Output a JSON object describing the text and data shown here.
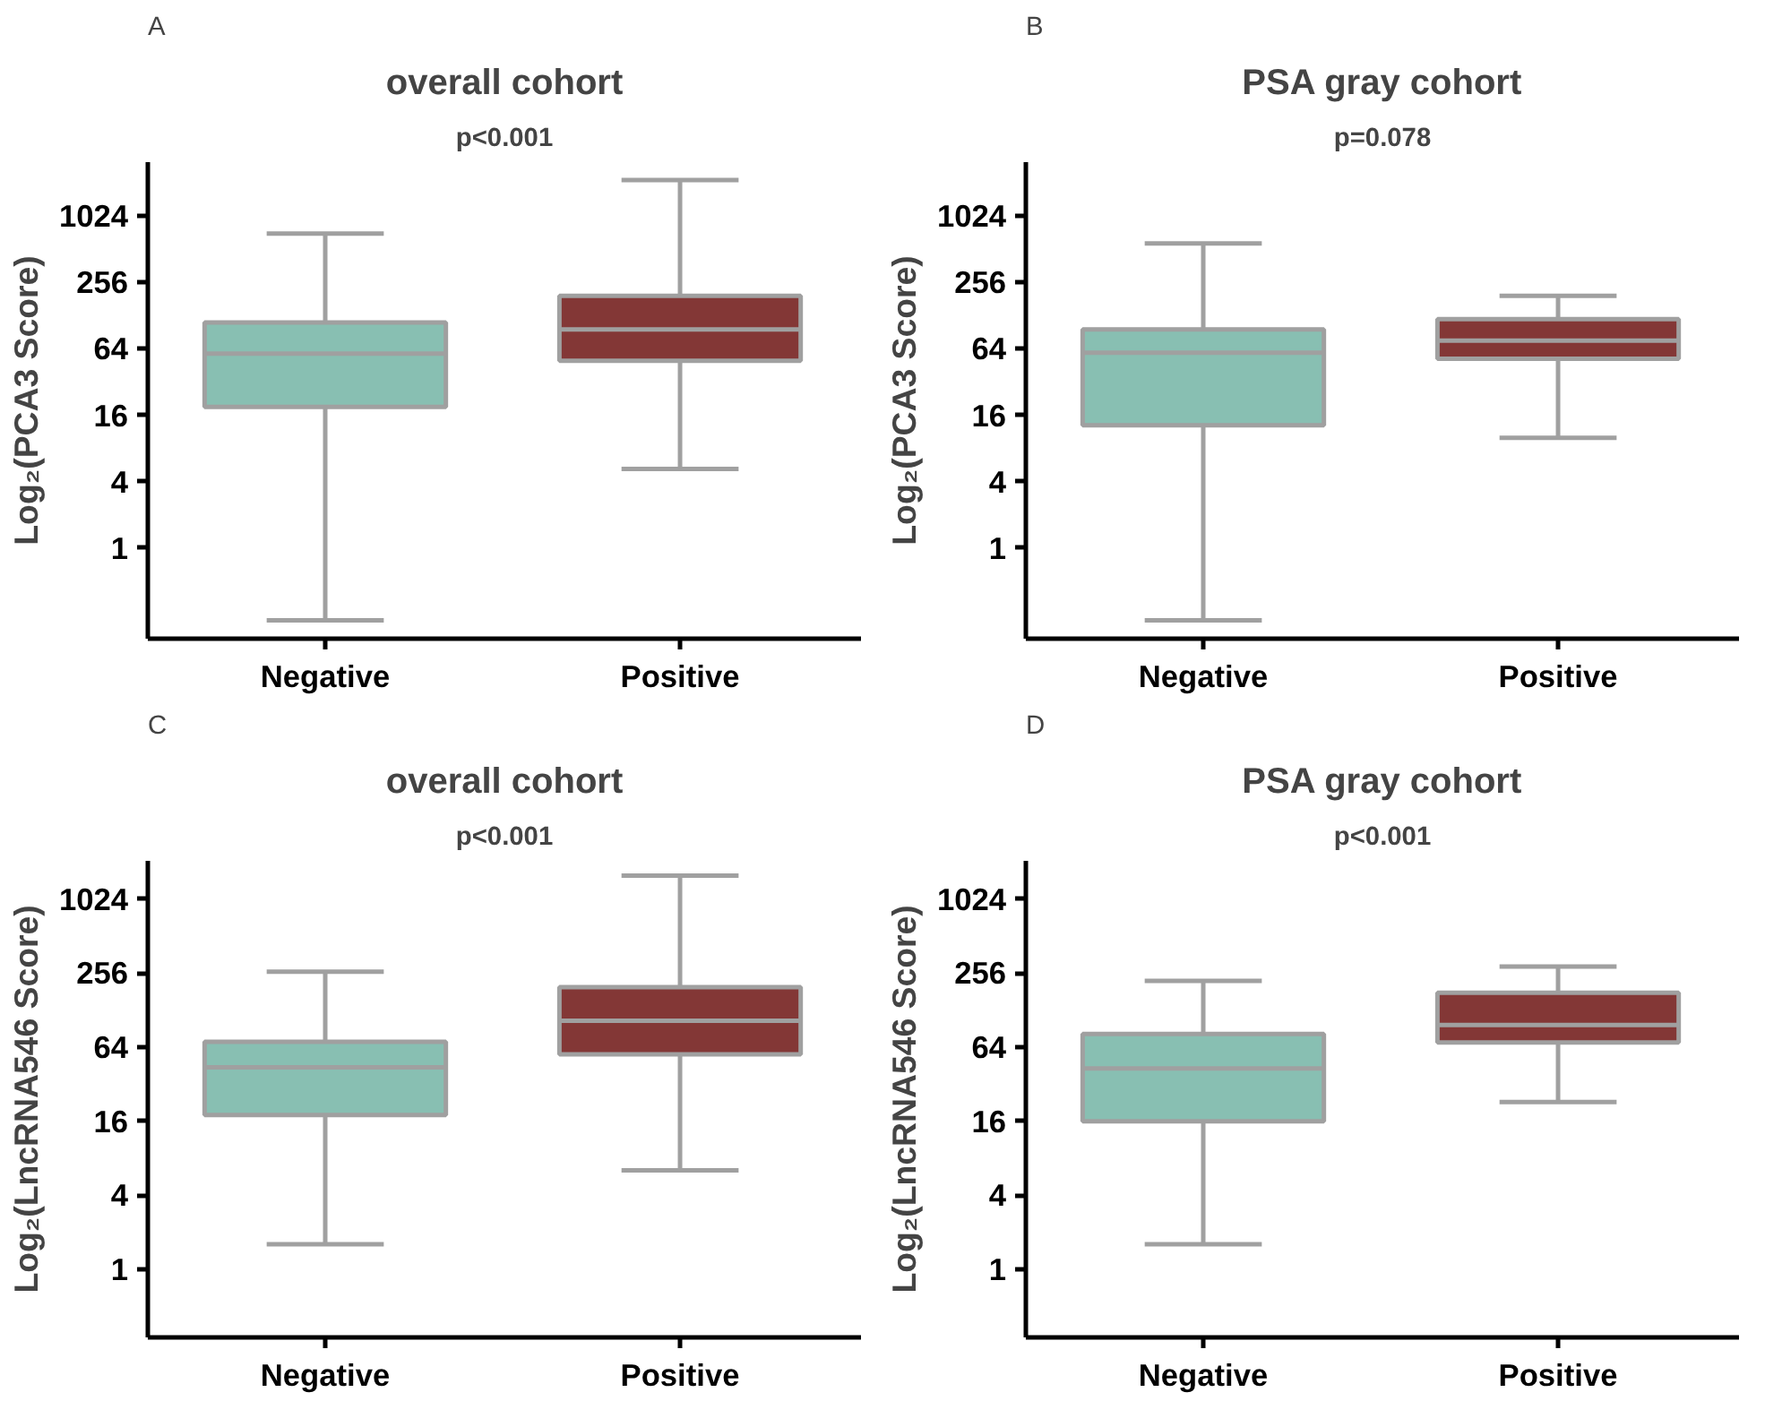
{
  "chart_data": [
    {
      "type": "box",
      "title": "overall cohort",
      "subtitle": "p<0.001",
      "annotations": [
        "A"
      ],
      "ylabel": "Log₂(PCA3 Score)",
      "log": true,
      "categories": [
        "Negative",
        "Positive"
      ],
      "colors": [
        "#88bfb2",
        "#833736"
      ],
      "ylim": [
        0.15,
        3170
      ],
      "yticks": [
        1,
        4,
        16,
        64,
        256,
        1024
      ],
      "boxes": [
        {
          "low": 0.22,
          "q1": 19,
          "median": 58,
          "q3": 111,
          "high": 714
        },
        {
          "low": 5.2,
          "q1": 50,
          "median": 96,
          "q3": 194,
          "high": 2180
        }
      ]
    },
    {
      "type": "box",
      "title": "PSA gray cohort",
      "subtitle": "p=0.078",
      "annotations": [
        "B"
      ],
      "ylabel": "Log₂(PCA3 Score)",
      "log": true,
      "categories": [
        "Negative",
        "Positive"
      ],
      "colors": [
        "#88bfb2",
        "#833736"
      ],
      "ylim": [
        0.15,
        3170
      ],
      "yticks": [
        1,
        4,
        16,
        64,
        256,
        1024
      ],
      "boxes": [
        {
          "low": 0.22,
          "q1": 13,
          "median": 59,
          "q3": 96,
          "high": 580
        },
        {
          "low": 10,
          "q1": 52,
          "median": 76,
          "q3": 119,
          "high": 194
        }
      ]
    },
    {
      "type": "box",
      "title": "overall cohort",
      "subtitle": "p<0.001",
      "annotations": [
        "C"
      ],
      "ylabel": "Log₂(LncRNA546 Score)",
      "log": true,
      "categories": [
        "Negative",
        "Positive"
      ],
      "colors": [
        "#88bfb2",
        "#833736"
      ],
      "ylim": [
        0.28,
        2100
      ],
      "yticks": [
        1,
        4,
        16,
        64,
        256,
        1024
      ],
      "boxes": [
        {
          "low": 1.6,
          "q1": 18,
          "median": 44,
          "q3": 71,
          "high": 263
        },
        {
          "low": 6.4,
          "q1": 56,
          "median": 105,
          "q3": 197,
          "high": 1590
        }
      ]
    },
    {
      "type": "box",
      "title": "PSA gray cohort",
      "subtitle": "p<0.001",
      "annotations": [
        "D"
      ],
      "ylabel": "Log₂(LncRNA546 Score)",
      "log": true,
      "categories": [
        "Negative",
        "Positive"
      ],
      "colors": [
        "#88bfb2",
        "#833736"
      ],
      "ylim": [
        0.28,
        2100
      ],
      "yticks": [
        1,
        4,
        16,
        64,
        256,
        1024
      ],
      "boxes": [
        {
          "low": 1.6,
          "q1": 16,
          "median": 43,
          "q3": 82,
          "high": 222
        },
        {
          "low": 23,
          "q1": 70,
          "median": 97,
          "q3": 178,
          "high": 290
        }
      ]
    }
  ]
}
